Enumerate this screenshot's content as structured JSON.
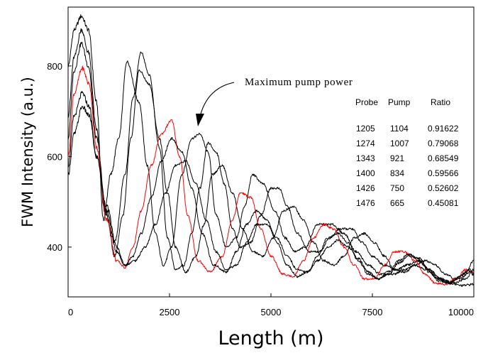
{
  "chart_data": {
    "type": "line",
    "title": "",
    "xlabel": "Length (m)",
    "ylabel": "FWM Intensity (a.u.)",
    "xlim": [
      0,
      10000
    ],
    "ylim": [
      290,
      930
    ],
    "xticks": [
      0,
      2500,
      5000,
      7500,
      10000
    ],
    "yticks": [
      400,
      600,
      800
    ],
    "grid": false,
    "annotation": "Maximum pump power",
    "table": {
      "headers": [
        "Probe",
        "Pump",
        "Ratio"
      ],
      "rows": [
        [
          "1205",
          "1104",
          "0.91622"
        ],
        [
          "1274",
          "1007",
          "0.79068"
        ],
        [
          "1343",
          "921",
          "0.68549"
        ],
        [
          "1400",
          "834",
          "0.59566"
        ],
        [
          "1426",
          "750",
          "0.52602"
        ],
        [
          "1476",
          "665",
          "0.45081"
        ]
      ]
    },
    "series": [
      {
        "color": "#000000",
        "x": [
          0,
          150,
          330,
          500,
          700,
          870,
          1050,
          1250,
          1450,
          1750,
          1950,
          2150,
          2350,
          2550,
          2800,
          3050,
          3250,
          3450,
          3650,
          3900,
          4150,
          4350,
          4550,
          4800,
          5100,
          5350,
          5600,
          5850,
          6150,
          6500,
          6800,
          7100,
          7400,
          7700,
          8000,
          8300,
          8550,
          8850,
          9100,
          9400,
          9700,
          10000
        ],
        "y": [
          800,
          880,
          910,
          880,
          720,
          460,
          560,
          640,
          810,
          720,
          580,
          430,
          360,
          400,
          560,
          640,
          650,
          610,
          470,
          400,
          420,
          490,
          560,
          540,
          480,
          420,
          390,
          400,
          450,
          450,
          430,
          390,
          360,
          340,
          340,
          350,
          360,
          350,
          330,
          320,
          315,
          318
        ]
      },
      {
        "color": "#000000",
        "x": [
          0,
          150,
          330,
          500,
          700,
          900,
          1150,
          1400,
          1600,
          1800,
          2000,
          2250,
          2450,
          2650,
          2850,
          3050,
          3250,
          3450,
          3650,
          3850,
          4050,
          4250,
          4500,
          4750,
          5000,
          5200,
          5400,
          5650,
          5950,
          6200,
          6450,
          6700,
          7000,
          7250,
          7500,
          7800,
          8100,
          8350,
          8650,
          8900,
          9200,
          9500,
          9800,
          10000
        ],
        "y": [
          690,
          820,
          880,
          830,
          660,
          480,
          410,
          560,
          730,
          830,
          780,
          620,
          420,
          350,
          360,
          430,
          530,
          630,
          610,
          540,
          440,
          400,
          410,
          470,
          530,
          530,
          490,
          430,
          390,
          390,
          420,
          440,
          440,
          410,
          380,
          360,
          350,
          360,
          370,
          350,
          330,
          320,
          330,
          350
        ]
      },
      {
        "color": "#000000",
        "x": [
          0,
          150,
          330,
          500,
          700,
          950,
          1150,
          1350,
          1550,
          1750,
          2000,
          2250,
          2450,
          2650,
          2900,
          3150,
          3350,
          3550,
          3800,
          4050,
          4300,
          4550,
          4800,
          5050,
          5300,
          5550,
          5800,
          6050,
          6300,
          6550,
          6800,
          7050,
          7300,
          7550,
          7800,
          8050,
          8300,
          8550,
          8800,
          9050,
          9300,
          9550,
          9800,
          10000
        ],
        "y": [
          640,
          790,
          850,
          800,
          640,
          470,
          380,
          470,
          640,
          790,
          760,
          640,
          520,
          400,
          345,
          380,
          450,
          560,
          580,
          520,
          440,
          390,
          380,
          420,
          480,
          490,
          460,
          410,
          370,
          360,
          380,
          420,
          430,
          410,
          380,
          350,
          345,
          360,
          370,
          360,
          340,
          330,
          345,
          370
        ]
      },
      {
        "color": "#ff0000",
        "x": [
          0,
          150,
          350,
          520,
          700,
          950,
          1200,
          1400,
          1600,
          1800,
          2050,
          2300,
          2550,
          2750,
          2950,
          3200,
          3500,
          3800,
          4050,
          4250,
          4500,
          4750,
          5000,
          5300,
          5550,
          5800,
          6050,
          6300,
          6550,
          6800,
          7050,
          7300,
          7550,
          7800,
          8050,
          8300,
          8550,
          8800,
          9050,
          9300,
          9550,
          9800,
          10000
        ],
        "y": [
          600,
          740,
          795,
          760,
          620,
          460,
          370,
          355,
          400,
          480,
          580,
          650,
          680,
          600,
          470,
          370,
          345,
          380,
          460,
          520,
          510,
          440,
          380,
          340,
          335,
          370,
          420,
          450,
          440,
          400,
          360,
          330,
          330,
          360,
          390,
          390,
          370,
          340,
          320,
          318,
          330,
          350,
          345
        ]
      },
      {
        "color": "#000000",
        "x": [
          0,
          150,
          350,
          520,
          700,
          950,
          1200,
          1400,
          1600,
          1800,
          2050,
          2300,
          2550,
          2800,
          3050,
          3300,
          3600,
          3900,
          4150,
          4400,
          4650,
          4900,
          5150,
          5400,
          5650,
          5900,
          6150,
          6400,
          6650,
          6900,
          7150,
          7400,
          7650,
          7900,
          8150,
          8400,
          8650,
          8900,
          9150,
          9400,
          9650,
          9900,
          10000
        ],
        "y": [
          580,
          690,
          740,
          710,
          600,
          480,
          390,
          360,
          380,
          430,
          510,
          590,
          640,
          610,
          530,
          430,
          360,
          345,
          390,
          450,
          480,
          460,
          410,
          360,
          335,
          345,
          380,
          420,
          430,
          410,
          370,
          340,
          330,
          345,
          370,
          385,
          370,
          345,
          325,
          320,
          335,
          350,
          340
        ]
      },
      {
        "color": "#000000",
        "x": [
          0,
          150,
          350,
          520,
          700,
          950,
          1200,
          1400,
          1650,
          1900,
          2150,
          2400,
          2650,
          2900,
          3150,
          3400,
          3650,
          3900,
          4150,
          4400,
          4650,
          4900,
          5150,
          5400,
          5650,
          5900,
          6150,
          6400,
          6650,
          6900,
          7150,
          7400,
          7650,
          7900,
          8150,
          8400,
          8650,
          8900,
          9150,
          9400,
          9650,
          9900,
          10000
        ],
        "y": [
          560,
          650,
          710,
          690,
          600,
          490,
          400,
          360,
          370,
          400,
          450,
          520,
          580,
          590,
          540,
          460,
          390,
          350,
          360,
          410,
          450,
          450,
          420,
          380,
          350,
          345,
          370,
          400,
          415,
          400,
          375,
          345,
          330,
          340,
          365,
          380,
          375,
          350,
          330,
          322,
          330,
          345,
          338
        ]
      }
    ]
  }
}
